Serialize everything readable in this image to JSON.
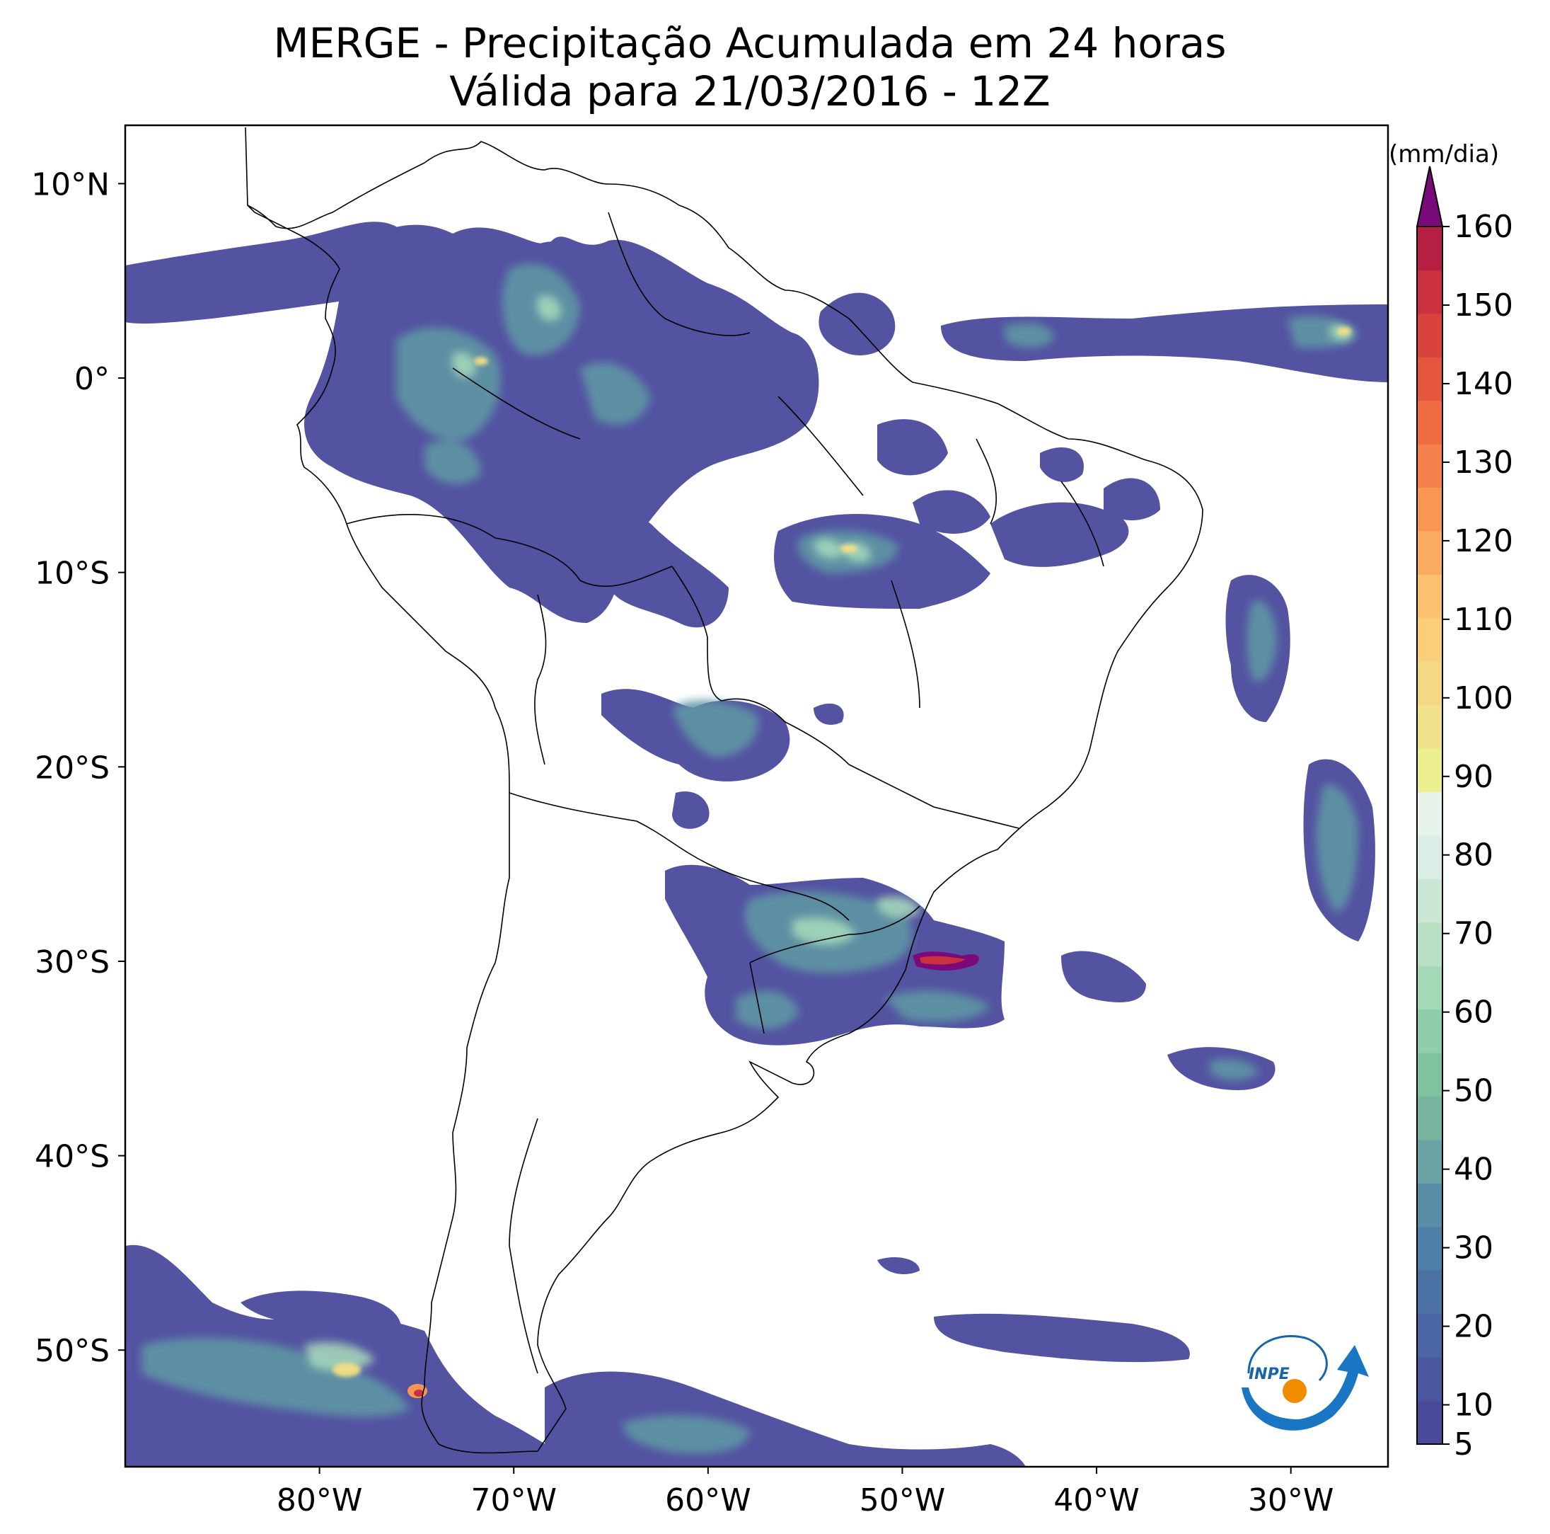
{
  "title": {
    "line1": "MERGE - Precipitação Acumulada em 24 horas",
    "line2": "Válida para 21/03/2016 - 12Z"
  },
  "map": {
    "lon_range": [
      -90,
      -25
    ],
    "lat_range": [
      -56,
      13
    ],
    "lat_ticks": [
      {
        "value": 10,
        "label": "10°N"
      },
      {
        "value": 0,
        "label": "0°"
      },
      {
        "value": -10,
        "label": "10°S"
      },
      {
        "value": -20,
        "label": "20°S"
      },
      {
        "value": -30,
        "label": "30°S"
      },
      {
        "value": -40,
        "label": "40°S"
      },
      {
        "value": -50,
        "label": "50°S"
      }
    ],
    "lon_ticks": [
      {
        "value": -80,
        "label": "80°W"
      },
      {
        "value": -70,
        "label": "70°W"
      },
      {
        "value": -60,
        "label": "60°W"
      },
      {
        "value": -50,
        "label": "50°W"
      },
      {
        "value": -40,
        "label": "40°W"
      },
      {
        "value": -30,
        "label": "30°W"
      }
    ]
  },
  "colorbar": {
    "unit": "(mm/dia)",
    "min": 5,
    "max": 160,
    "tick_labels": [
      "5",
      "10",
      "20",
      "30",
      "40",
      "50",
      "60",
      "70",
      "80",
      "90",
      "100",
      "110",
      "120",
      "130",
      "140",
      "150",
      "160"
    ],
    "tick_values": [
      5,
      10,
      20,
      30,
      40,
      50,
      60,
      70,
      80,
      90,
      100,
      110,
      120,
      130,
      140,
      150,
      160
    ],
    "extend_color": "#7a0a7a",
    "colors": [
      "#4a4a9c",
      "#4b579f",
      "#4c65a3",
      "#4c72a5",
      "#4d80a7",
      "#5a8ea6",
      "#6aa3a3",
      "#78b4a0",
      "#80c29f",
      "#8fceaa",
      "#a5d8b5",
      "#b9e0c4",
      "#cae7d5",
      "#dbeee6",
      "#e8f3ea",
      "#ebef8e",
      "#f0e18a",
      "#f5d884",
      "#f9cf7c",
      "#fbc070",
      "#fbab63",
      "#f89656",
      "#f4814b",
      "#ee6b43",
      "#e5563e",
      "#d9433d",
      "#c9313f",
      "#b52042"
    ]
  },
  "logo": {
    "text": "INPE"
  },
  "legend_colors": {
    "land_outline": "#000000"
  }
}
